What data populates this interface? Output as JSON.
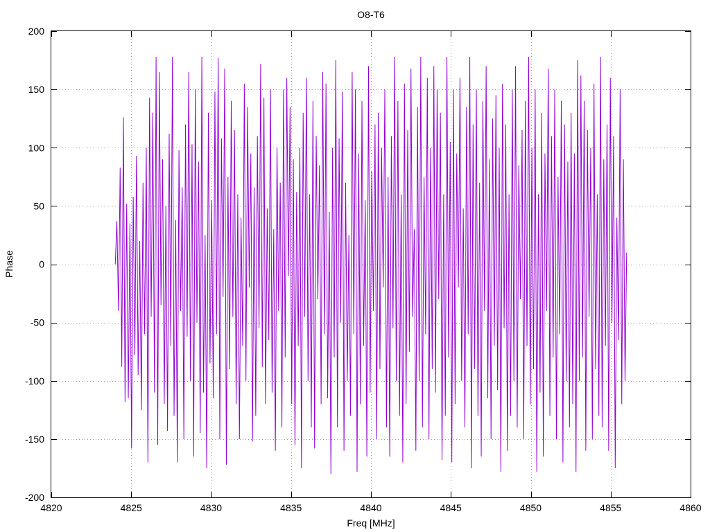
{
  "chart_data": {
    "type": "line",
    "title": "O8-T6",
    "xlabel": "Freq [MHz]",
    "ylabel": "Phase",
    "xlim": [
      4820,
      4860
    ],
    "ylim": [
      -200,
      200
    ],
    "xticks": [
      4820,
      4825,
      4830,
      4835,
      4840,
      4845,
      4850,
      4855,
      4860
    ],
    "yticks": [
      -200,
      -150,
      -100,
      -50,
      0,
      50,
      100,
      150,
      200
    ],
    "xtick_labels": [
      "4820",
      "4825",
      "4830",
      "4835",
      "4840",
      "4845",
      "4850",
      "4855",
      "4860"
    ],
    "ytick_labels": [
      "-200",
      "-150",
      "-100",
      "-50",
      "0",
      "50",
      "100",
      "150",
      "200"
    ],
    "grid": true,
    "legend": "none",
    "series": [
      {
        "color": "#9400d3",
        "x_start": 4824.0,
        "x_end": 4856.0,
        "values": [
          0,
          37,
          -40,
          83,
          -88,
          126,
          -118,
          52,
          -115,
          35,
          -158,
          58,
          -78,
          93,
          -95,
          20,
          -125,
          70,
          -60,
          100,
          -170,
          143,
          -45,
          130,
          -110,
          178,
          -155,
          165,
          -35,
          90,
          -120,
          50,
          -143,
          112,
          -70,
          178,
          -130,
          38,
          -170,
          98,
          -40,
          66,
          -150,
          120,
          -62,
          165,
          -100,
          103,
          -165,
          150,
          -50,
          88,
          -145,
          178,
          -110,
          25,
          -175,
          130,
          -85,
          55,
          -115,
          148,
          -60,
          177,
          -150,
          108,
          -28,
          168,
          -172,
          75,
          -90,
          140,
          -45,
          115,
          -120,
          60,
          -150,
          40,
          -70,
          155,
          -100,
          135,
          -20,
          95,
          -152,
          66,
          -130,
          110,
          -55,
          172,
          -88,
          143,
          -120,
          48,
          -65,
          150,
          -110,
          30,
          -160,
          100,
          -40,
          70,
          -140,
          150,
          -80,
          160,
          -10,
          135,
          -120,
          90,
          -155,
          62,
          -70,
          100,
          -175,
          130,
          -45,
          160,
          -100,
          60,
          -140,
          140,
          -158,
          110,
          -30,
          85,
          -120,
          165,
          -60,
          155,
          -115,
          45,
          -180,
          100,
          -80,
          175,
          -140,
          108,
          -50,
          148,
          -160,
          70,
          -100,
          25,
          -130,
          165,
          -60,
          150,
          -178,
          95,
          -120,
          140,
          -70,
          55,
          -165,
          170,
          -110,
          80,
          -40,
          120,
          -150,
          130,
          -90,
          100,
          -20,
          150,
          -140,
          75,
          -165,
          110,
          -55,
          178,
          -100,
          140,
          -130,
          60,
          -170,
          155,
          -120,
          115,
          -75,
          168,
          -45,
          30,
          -160,
          135,
          -100,
          178,
          -140,
          75,
          -60,
          160,
          -150,
          100,
          -90,
          170,
          -110,
          150,
          -30,
          130,
          -168,
          60,
          -130,
          178,
          -80,
          105,
          -170,
          150,
          -120,
          95,
          -20,
          160,
          -100,
          48,
          -140,
          135,
          -60,
          178,
          -175,
          120,
          -90,
          150,
          -130,
          70,
          -165,
          140,
          -40,
          170,
          -115,
          90,
          -150,
          125,
          -70,
          145,
          -108,
          100,
          -178,
          155,
          -55,
          120,
          -160,
          60,
          -130,
          150,
          -100,
          170,
          -140,
          85,
          -30,
          115,
          -150,
          140,
          -70,
          178,
          -120,
          100,
          -90,
          150,
          -178,
          60,
          -110,
          130,
          -165,
          95,
          -40,
          168,
          -130,
          110,
          -80,
          150,
          -150,
          75,
          -60,
          140,
          -170,
          120,
          -100,
          88,
          -140,
          130,
          -120,
          95,
          -178,
          175,
          -100,
          162,
          -80,
          140,
          -160,
          115,
          -45,
          100,
          -150,
          155,
          -90,
          60,
          -130,
          178,
          -140,
          90,
          -70,
          120,
          -160,
          160,
          -50,
          110,
          -175,
          40,
          -65,
          150,
          -120,
          90,
          -100,
          10
        ]
      }
    ]
  }
}
